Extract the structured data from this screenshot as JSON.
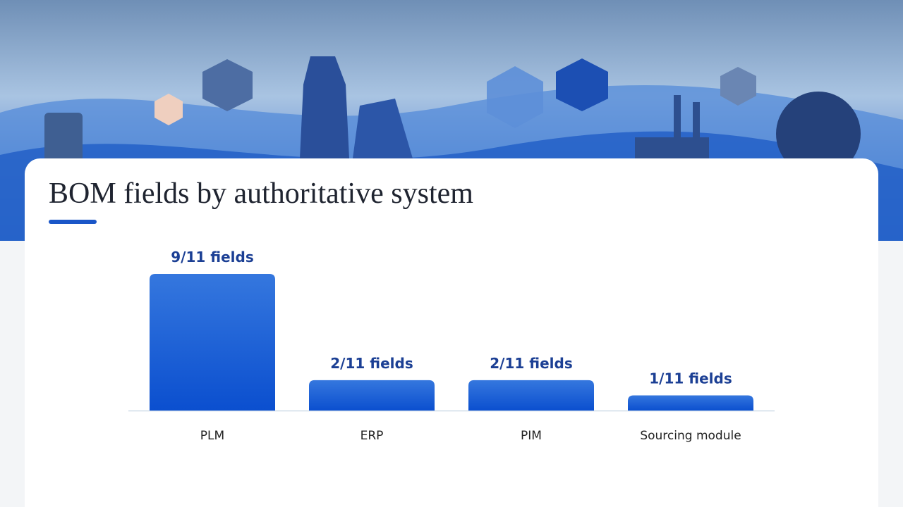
{
  "chart_data": {
    "type": "bar",
    "title": "BOM fields by authoritative system",
    "categories": [
      "PLM",
      "ERP",
      "PIM",
      "Sourcing module"
    ],
    "values": [
      9,
      2,
      2,
      1
    ],
    "value_labels": [
      "9/11 fields",
      "2/11 fields",
      "2/11 fields",
      "1/11 fields"
    ],
    "color": "#1f5fd6"
  }
}
